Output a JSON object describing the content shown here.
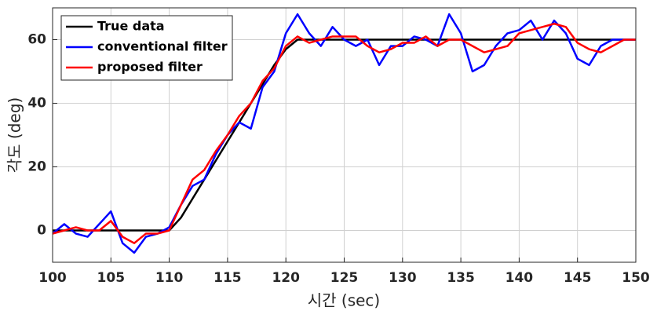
{
  "chart_data": {
    "type": "line",
    "xlabel": "시간 (sec)",
    "ylabel": "각도 (deg)",
    "x": [
      100,
      101,
      102,
      103,
      104,
      105,
      106,
      107,
      108,
      109,
      110,
      111,
      112,
      113,
      114,
      115,
      116,
      117,
      118,
      119,
      120,
      121,
      122,
      123,
      124,
      125,
      126,
      127,
      128,
      129,
      130,
      131,
      132,
      133,
      134,
      135,
      136,
      137,
      138,
      139,
      140,
      141,
      142,
      143,
      144,
      145,
      146,
      147,
      148,
      149,
      150
    ],
    "series": [
      {
        "name": "True data",
        "color": "#000000",
        "values": [
          0,
          0,
          0,
          0,
          0,
          0,
          0,
          0,
          0,
          0,
          0,
          4,
          10,
          16,
          22,
          28,
          34,
          40,
          46,
          52,
          57,
          60,
          60,
          60,
          60,
          60,
          60,
          60,
          60,
          60,
          60,
          60,
          60,
          60,
          60,
          60,
          60,
          60,
          60,
          60,
          60,
          60,
          60,
          60,
          60,
          60,
          60,
          60,
          60,
          60,
          60
        ]
      },
      {
        "name": "conventional filter",
        "color": "#0000ff",
        "values": [
          -1,
          2,
          -1,
          -2,
          2,
          6,
          -4,
          -7,
          -2,
          -1,
          1,
          8,
          14,
          16,
          24,
          30,
          34,
          32,
          45,
          50,
          62,
          68,
          62,
          58,
          64,
          60,
          58,
          60,
          52,
          58,
          58,
          61,
          60,
          58,
          68,
          62,
          50,
          52,
          58,
          62,
          63,
          66,
          60,
          66,
          62,
          54,
          52,
          58,
          60,
          60,
          60
        ]
      },
      {
        "name": "proposed filter",
        "color": "#ff0000",
        "values": [
          -1,
          0,
          1,
          0,
          0,
          3,
          -2,
          -4,
          -1,
          -1,
          0,
          8,
          16,
          19,
          25,
          30,
          36,
          40,
          47,
          51,
          58,
          61,
          59,
          60,
          61,
          61,
          61,
          58,
          56,
          57,
          59,
          59,
          61,
          58,
          60,
          60,
          58,
          56,
          57,
          58,
          62,
          63,
          64,
          65,
          64,
          59,
          57,
          56,
          58,
          60,
          60
        ]
      }
    ],
    "xlim": [
      100,
      150
    ],
    "xticks": [
      100,
      105,
      110,
      115,
      120,
      125,
      130,
      135,
      140,
      145,
      150
    ],
    "ylim": [
      -10,
      70
    ],
    "yticks": [
      0,
      20,
      40,
      60
    ],
    "grid": true,
    "legend": "upper-left"
  }
}
